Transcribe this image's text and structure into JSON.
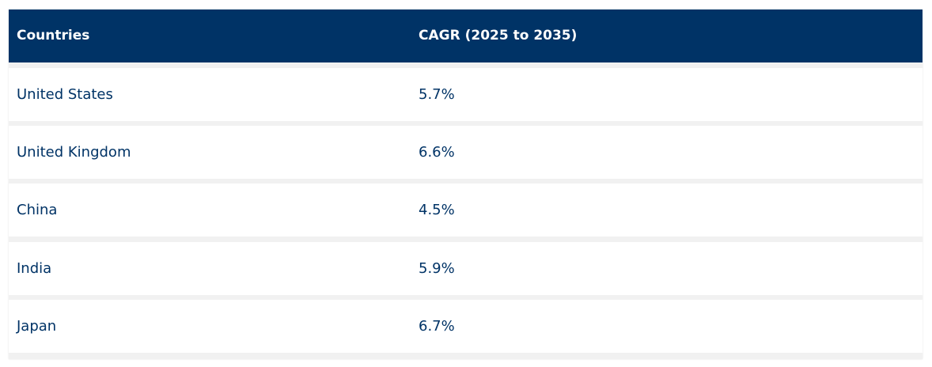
{
  "table": {
    "headers": [
      "Countries",
      "CAGR (2025 to 2035)"
    ],
    "rows": [
      [
        "United States",
        "5.7%"
      ],
      [
        "United Kingdom",
        "6.6%"
      ],
      [
        "China",
        "4.5%"
      ],
      [
        "India",
        "5.9%"
      ],
      [
        "Japan",
        "6.7%"
      ]
    ]
  },
  "colors": {
    "header_background": "#003366",
    "header_text": "#ffffff",
    "cell_text": "#003366",
    "row_background": "#ffffff",
    "row_separator": "#f1f1f1"
  }
}
